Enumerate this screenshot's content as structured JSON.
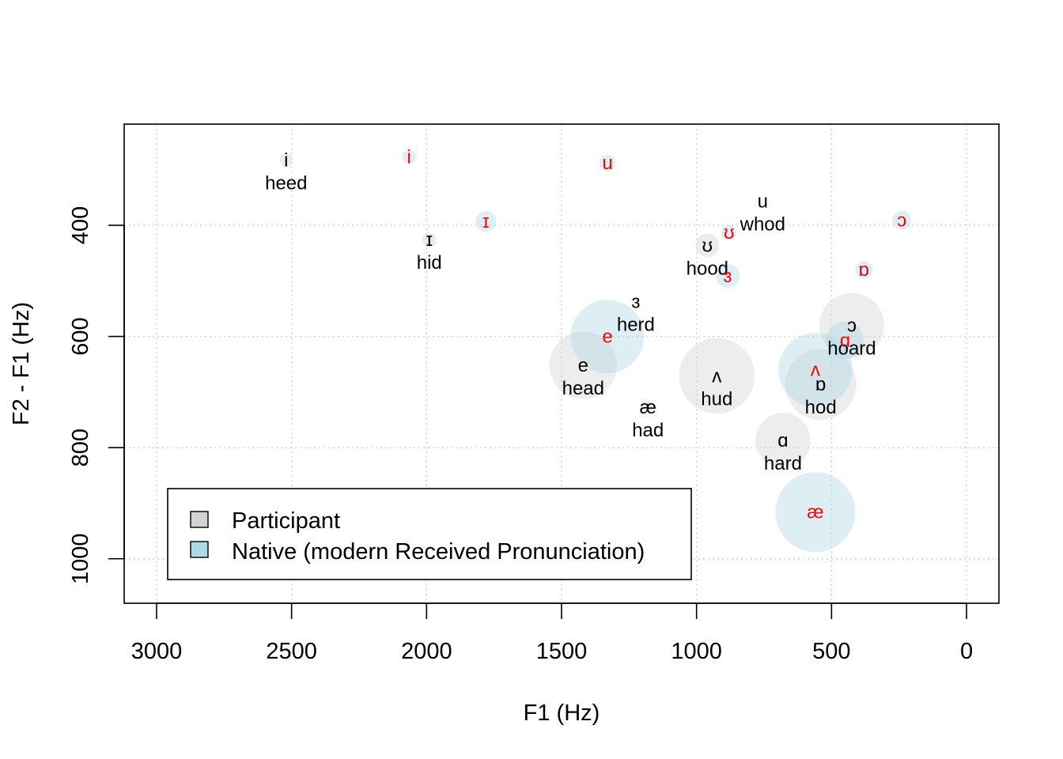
{
  "chart_data": {
    "type": "scatter",
    "xlabel": "F1 (Hz)",
    "ylabel": "F2 - F1 (Hz)",
    "xlim": [
      3120,
      -120
    ],
    "ylim": [
      1080,
      218
    ],
    "x_axis_reversed": true,
    "y_axis_reversed": true,
    "x_ticks": [
      3000,
      2500,
      2000,
      1500,
      1000,
      500,
      0
    ],
    "x_tick_labels": [
      "3000",
      "2500",
      "2000",
      "1500",
      "1000",
      "500",
      "0"
    ],
    "y_ticks": [
      400,
      600,
      800,
      1000
    ],
    "y_tick_labels": [
      "400",
      "600",
      "800",
      "1000"
    ],
    "grid": true,
    "legend_position": "bottom-left",
    "colors": {
      "participant_fill": "#d3d3d3",
      "native_fill": "#add8e6",
      "participant_text": "#000000",
      "native_text": "#ff0000"
    },
    "legend": [
      {
        "label": "Participant",
        "swatch": "#d3d3d3"
      },
      {
        "label": "Native (modern Received Pronunciation)",
        "swatch": "#add8e6"
      }
    ],
    "series": [
      {
        "name": "Participant",
        "points": [
          {
            "symbol": "i",
            "word": "heed",
            "x": 2520,
            "y": 283,
            "spread": 25
          },
          {
            "symbol": "ɪ",
            "word": "hid",
            "x": 1990,
            "y": 426,
            "spread": 27
          },
          {
            "symbol": "u",
            "word": "whod",
            "x": 755,
            "y": 357,
            "spread": 0
          },
          {
            "symbol": "ʊ",
            "word": "hood",
            "x": 960,
            "y": 436,
            "spread": 44
          },
          {
            "symbol": "ɜ",
            "word": "herd",
            "x": 1225,
            "y": 537,
            "spread": 0
          },
          {
            "symbol": "ɔ",
            "word": "hoard",
            "x": 425,
            "y": 580,
            "spread": 120
          },
          {
            "symbol": "e",
            "word": "head",
            "x": 1420,
            "y": 652,
            "spread": 125
          },
          {
            "symbol": "ʌ",
            "word": "hud",
            "x": 925,
            "y": 671,
            "spread": 140
          },
          {
            "symbol": "ɒ",
            "word": "hod",
            "x": 540,
            "y": 686,
            "spread": 132
          },
          {
            "symbol": "æ",
            "word": "had",
            "x": 1180,
            "y": 727,
            "spread": 20
          },
          {
            "symbol": "ɑ",
            "word": "hard",
            "x": 680,
            "y": 787,
            "spread": 102
          }
        ]
      },
      {
        "name": "Native (modern Received Pronunciation)",
        "points": [
          {
            "symbol": "i",
            "x": 2065,
            "y": 277,
            "spread": 25
          },
          {
            "symbol": "u",
            "x": 1330,
            "y": 288,
            "spread": 30
          },
          {
            "symbol": "ɪ",
            "x": 1780,
            "y": 393,
            "spread": 38
          },
          {
            "symbol": "ʊ",
            "x": 880,
            "y": 413,
            "spread": 28
          },
          {
            "symbol": "ɔ",
            "x": 240,
            "y": 391,
            "spread": 35
          },
          {
            "symbol": "ɜ",
            "x": 885,
            "y": 491,
            "spread": 44
          },
          {
            "symbol": "ɒ",
            "x": 380,
            "y": 480,
            "spread": 32
          },
          {
            "symbol": "e",
            "x": 1330,
            "y": 600,
            "spread": 136
          },
          {
            "symbol": "ɑ",
            "x": 450,
            "y": 607,
            "spread": 70
          },
          {
            "symbol": "ʌ",
            "x": 560,
            "y": 660,
            "spread": 137
          },
          {
            "symbol": "æ",
            "x": 560,
            "y": 916,
            "spread": 148
          }
        ]
      }
    ]
  }
}
